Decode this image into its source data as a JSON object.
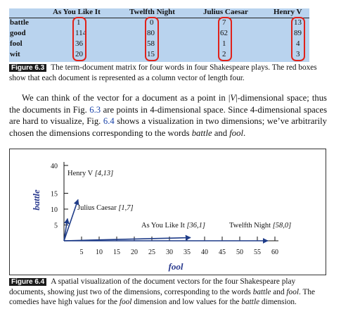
{
  "fig63": {
    "columns": [
      "As You Like It",
      "Twelfth Night",
      "Julius Caesar",
      "Henry V"
    ],
    "rows": [
      {
        "word": "battle",
        "values": [
          "1",
          "0",
          "7",
          "13"
        ]
      },
      {
        "word": "good",
        "values": [
          "114",
          "80",
          "62",
          "89"
        ]
      },
      {
        "word": "fool",
        "values": [
          "36",
          "58",
          "1",
          "4"
        ]
      },
      {
        "word": "wit",
        "values": [
          "20",
          "15",
          "2",
          "3"
        ]
      }
    ],
    "highlight_color": "#e0221a",
    "label": "Figure 6.3",
    "caption": "The term-document matrix for four words in four Shakespeare plays. The red boxes show that each document is represented as a column vector of length four."
  },
  "paragraph": {
    "t1": "We can think of the vector for a document as a point in |",
    "t1v": "V",
    "t2": "|-dimensional space; thus the documents in Fig. ",
    "ref1": "6.3",
    "t3": " are points in 4-dimensional space. Since 4-dimensional spaces are hard to visualize, Fig. ",
    "ref2": "6.4",
    "t4": " shows a visualization in two dimensions; we’ve arbitrarily chosen the dimensions corresponding to the words ",
    "w1": "battle",
    "t5": " and ",
    "w2": "fool",
    "t6": "."
  },
  "chart_data": {
    "type": "scatter",
    "xlabel": "fool",
    "ylabel": "battle",
    "x_ticks": [
      5,
      10,
      15,
      20,
      25,
      30,
      35,
      40,
      45,
      50,
      55,
      60
    ],
    "y_ticks": [
      5,
      10,
      15,
      40
    ],
    "points": [
      {
        "label": "Henry V",
        "coords": "[4,13]",
        "x": 4,
        "y": 13
      },
      {
        "label": "Julius Caesar",
        "coords": "[1,7]",
        "x": 1,
        "y": 7
      },
      {
        "label": "As You Like It",
        "coords": "[36,1]",
        "x": 36,
        "y": 1
      },
      {
        "label": "Twelfth Night",
        "coords": "[58,0]",
        "x": 58,
        "y": 0
      }
    ],
    "vector_color": "#1f3c88",
    "axis_label_color": "#2a3a8e"
  },
  "fig64": {
    "label": "Figure 6.4",
    "c1": "A spatial visualization of the document vectors for the four Shakespeare play documents, showing just two of the dimensions, corresponding to the words ",
    "w1": "battle",
    "c2": " and ",
    "w2": "fool",
    "c3": ". The comedies have high values for the ",
    "w3": "fool",
    "c4": " dimension and low values for the ",
    "w4": "battle",
    "c5": " dimension."
  }
}
